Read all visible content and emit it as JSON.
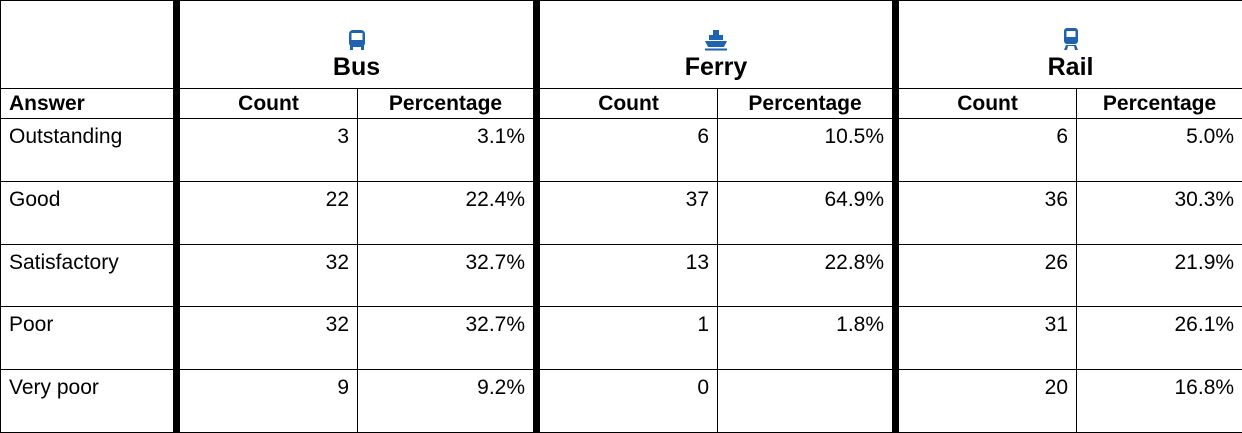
{
  "table": {
    "groups": [
      "Bus",
      "Ferry",
      "Rail"
    ],
    "columns": [
      "Answer",
      "Count",
      "Percentage",
      "Count",
      "Percentage",
      "Count",
      "Percentage"
    ],
    "rows": [
      [
        "Outstanding",
        3,
        "3.1%",
        6,
        "10.5%",
        6,
        "5.0%"
      ],
      [
        "Good",
        22,
        "22.4%",
        37,
        "64.9%",
        36,
        "30.3%"
      ],
      [
        "Satisfactory",
        32,
        "32.7%",
        13,
        "22.8%",
        26,
        "21.9%"
      ],
      [
        "Poor",
        32,
        "32.7%",
        1,
        "1.8%",
        31,
        "26.1%"
      ],
      [
        "Very poor",
        9,
        "9.2%",
        0,
        null,
        20,
        "16.8%"
      ]
    ]
  }
}
